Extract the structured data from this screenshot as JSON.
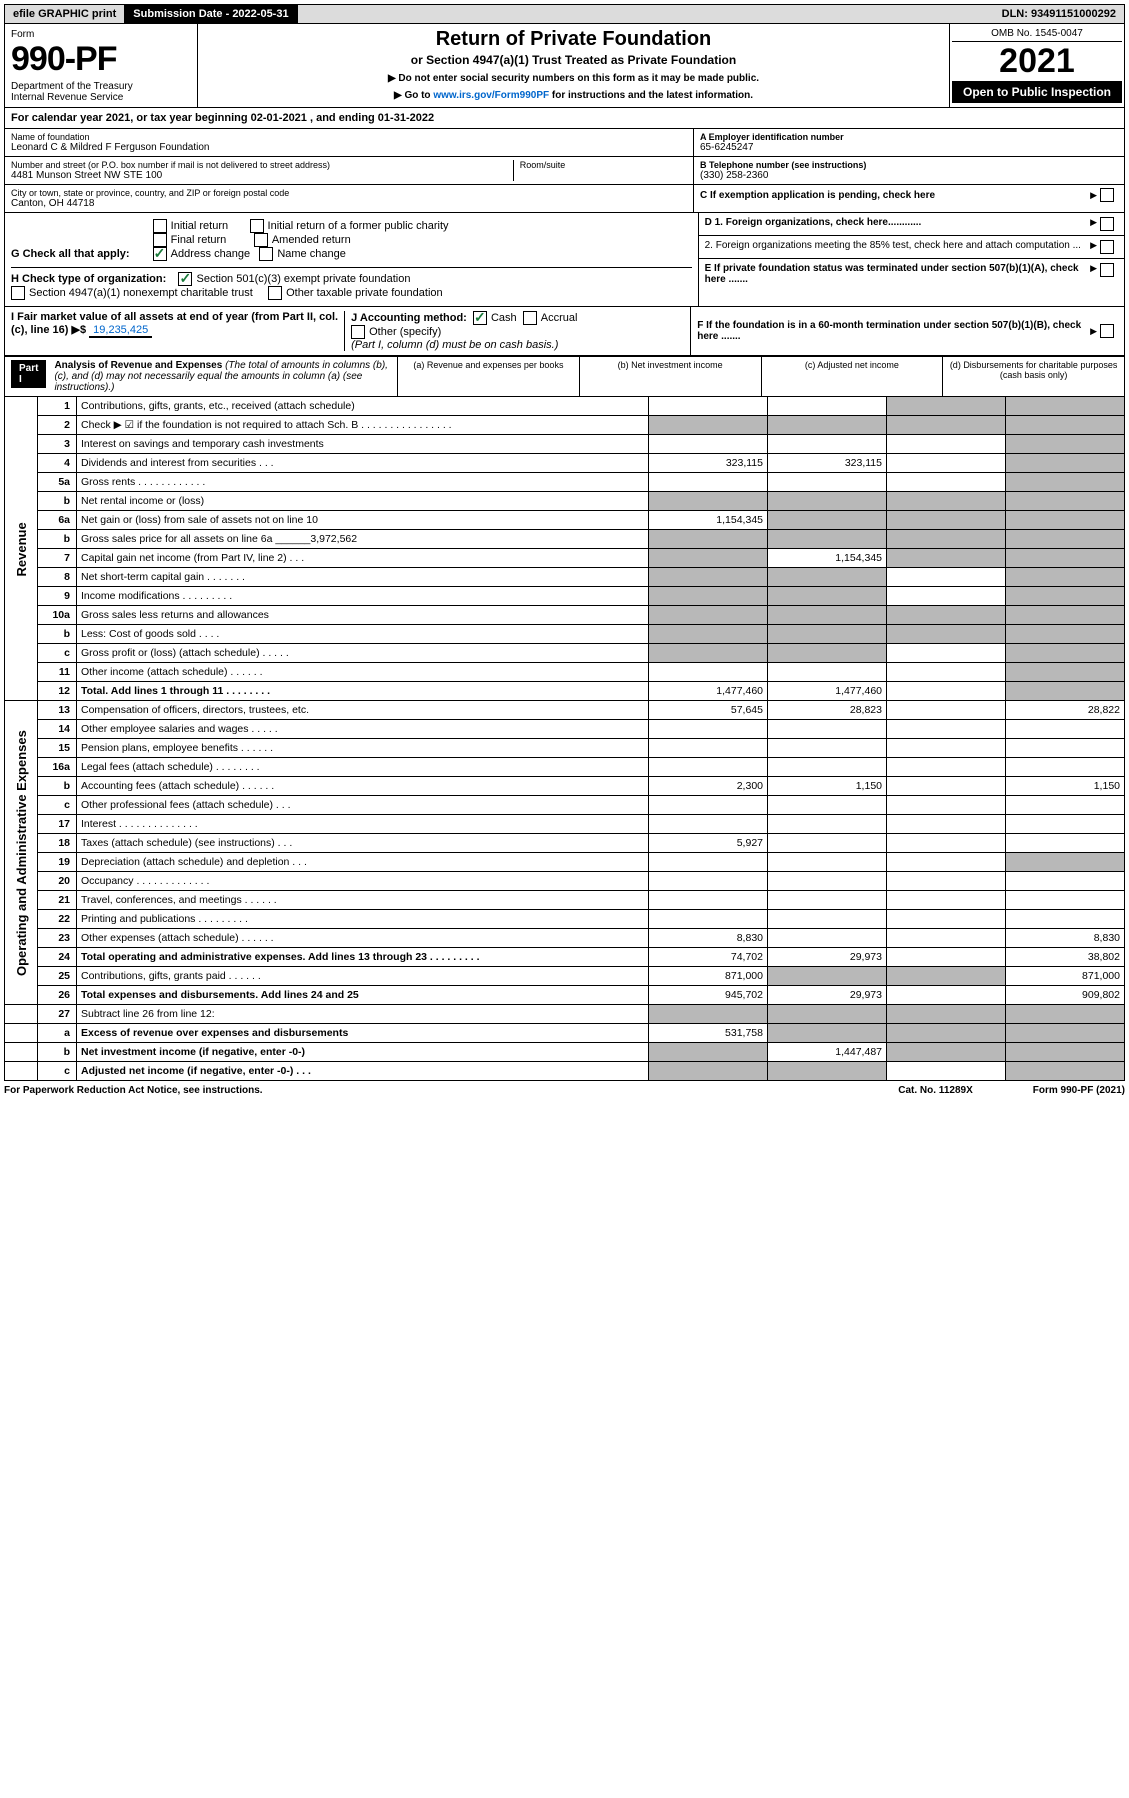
{
  "topbar": {
    "efile": "efile GRAPHIC print",
    "subdate_label": "Submission Date - 2022-05-31",
    "dln": "DLN: 93491151000292"
  },
  "header": {
    "form_label": "Form",
    "form_num": "990-PF",
    "dept": "Department of the Treasury\nInternal Revenue Service",
    "title": "Return of Private Foundation",
    "subtitle": "or Section 4947(a)(1) Trust Treated as Private Foundation",
    "instr1": "▶ Do not enter social security numbers on this form as it may be made public.",
    "instr2_pre": "▶ Go to ",
    "instr2_link": "www.irs.gov/Form990PF",
    "instr2_post": " for instructions and the latest information.",
    "omb": "OMB No. 1545-0047",
    "year": "2021",
    "open": "Open to Public Inspection"
  },
  "calendar": "For calendar year 2021, or tax year beginning 02-01-2021          , and ending 01-31-2022",
  "name": {
    "lbl": "Name of foundation",
    "val": "Leonard C & Mildred F Ferguson Foundation"
  },
  "addr1": {
    "lbl": "Number and street (or P.O. box number if mail is not delivered to street address)",
    "val": "4481 Munson Street NW STE 100",
    "room": "Room/suite"
  },
  "addr2": {
    "lbl": "City or town, state or province, country, and ZIP or foreign postal code",
    "val": "Canton, OH  44718"
  },
  "ein": {
    "lbl": "A Employer identification number",
    "val": "65-6245247"
  },
  "phone": {
    "lbl": "B Telephone number (see instructions)",
    "val": "(330) 258-2360"
  },
  "c_label": "C If exemption application is pending, check here",
  "g": {
    "label": "G Check all that apply:",
    "o1": "Initial return",
    "o2": "Final return",
    "o3": "Address change",
    "o4": "Initial return of a former public charity",
    "o5": "Amended return",
    "o6": "Name change"
  },
  "d": {
    "d1": "D 1. Foreign organizations, check here............",
    "d2": "2. Foreign organizations meeting the 85% test, check here and attach computation ..."
  },
  "e_label": "E If private foundation status was terminated under section 507(b)(1)(A), check here .......",
  "h": {
    "label": "H Check type of organization:",
    "o1": "Section 501(c)(3) exempt private foundation",
    "o2": "Section 4947(a)(1) nonexempt charitable trust",
    "o3": "Other taxable private foundation"
  },
  "i": {
    "label": "I Fair market value of all assets at end of year (from Part II, col. (c), line 16) ▶$",
    "val": "19,235,425"
  },
  "j": {
    "label": "J Accounting method:",
    "o1": "Cash",
    "o2": "Accrual",
    "o3": "Other (specify)",
    "note": "(Part I, column (d) must be on cash basis.)"
  },
  "f_label": "F If the foundation is in a 60-month termination under section 507(b)(1)(B), check here .......",
  "part1": {
    "label": "Part I",
    "title": "Analysis of Revenue and Expenses",
    "title_note": "(The total of amounts in columns (b), (c), and (d) may not necessarily equal the amounts in column (a) (see instructions).)",
    "col_a": "(a) Revenue and expenses per books",
    "col_b": "(b) Net investment income",
    "col_c": "(c) Adjusted net income",
    "col_d": "(d) Disbursements for charitable purposes (cash basis only)"
  },
  "rev_label": "Revenue",
  "exp_label": "Operating and Administrative Expenses",
  "rows": [
    {
      "n": "1",
      "t": "Contributions, gifts, grants, etc., received (attach schedule)",
      "a": "",
      "b": "",
      "c": "g",
      "d": "g"
    },
    {
      "n": "2",
      "t": "Check ▶ ☑ if the foundation is not required to attach Sch. B    .  .  .  .  .  .  .  .  .  .  .  .  .  .  .  .",
      "a": "g",
      "b": "g",
      "c": "g",
      "d": "g"
    },
    {
      "n": "3",
      "t": "Interest on savings and temporary cash investments",
      "a": "",
      "b": "",
      "c": "",
      "d": "g"
    },
    {
      "n": "4",
      "t": "Dividends and interest from securities    .   .   .",
      "a": "323,115",
      "b": "323,115",
      "c": "",
      "d": "g"
    },
    {
      "n": "5a",
      "t": "Gross rents    .   .   .   .   .   .   .   .   .   .   .   .",
      "a": "",
      "b": "",
      "c": "",
      "d": "g"
    },
    {
      "n": "b",
      "t": "Net rental income or (loss)",
      "a": "g",
      "b": "g",
      "c": "g",
      "d": "g"
    },
    {
      "n": "6a",
      "t": "Net gain or (loss) from sale of assets not on line 10",
      "a": "1,154,345",
      "b": "g",
      "c": "g",
      "d": "g"
    },
    {
      "n": "b",
      "t": "Gross sales price for all assets on line 6a ______3,972,562",
      "a": "g",
      "b": "g",
      "c": "g",
      "d": "g"
    },
    {
      "n": "7",
      "t": "Capital gain net income (from Part IV, line 2)    .   .   .",
      "a": "g",
      "b": "1,154,345",
      "c": "g",
      "d": "g"
    },
    {
      "n": "8",
      "t": "Net short-term capital gain    .   .   .   .   .   .   .",
      "a": "g",
      "b": "g",
      "c": "",
      "d": "g"
    },
    {
      "n": "9",
      "t": "Income modifications   .   .   .   .   .   .   .   .   .",
      "a": "g",
      "b": "g",
      "c": "",
      "d": "g"
    },
    {
      "n": "10a",
      "t": "Gross sales less returns and allowances",
      "a": "g",
      "b": "g",
      "c": "g",
      "d": "g"
    },
    {
      "n": "b",
      "t": "Less: Cost of goods sold    .   .   .   .",
      "a": "g",
      "b": "g",
      "c": "g",
      "d": "g"
    },
    {
      "n": "c",
      "t": "Gross profit or (loss) (attach schedule)    .   .   .   .   .",
      "a": "g",
      "b": "g",
      "c": "",
      "d": "g"
    },
    {
      "n": "11",
      "t": "Other income (attach schedule)    .   .   .   .   .   .",
      "a": "",
      "b": "",
      "c": "",
      "d": "g"
    },
    {
      "n": "12",
      "t": "Total. Add lines 1 through 11   .   .   .   .   .   .   .   .",
      "a": "1,477,460",
      "b": "1,477,460",
      "c": "",
      "d": "g",
      "bold": true
    }
  ],
  "exp_rows": [
    {
      "n": "13",
      "t": "Compensation of officers, directors, trustees, etc.",
      "a": "57,645",
      "b": "28,823",
      "c": "",
      "d": "28,822"
    },
    {
      "n": "14",
      "t": "Other employee salaries and wages    .   .   .   .   .",
      "a": "",
      "b": "",
      "c": "",
      "d": ""
    },
    {
      "n": "15",
      "t": "Pension plans, employee benefits   .   .   .   .   .   .",
      "a": "",
      "b": "",
      "c": "",
      "d": ""
    },
    {
      "n": "16a",
      "t": "Legal fees (attach schedule)  .   .   .   .   .   .   .   .",
      "a": "",
      "b": "",
      "c": "",
      "d": ""
    },
    {
      "n": "b",
      "t": "Accounting fees (attach schedule)  .   .   .   .   .   .",
      "a": "2,300",
      "b": "1,150",
      "c": "",
      "d": "1,150"
    },
    {
      "n": "c",
      "t": "Other professional fees (attach schedule)    .   .   .",
      "a": "",
      "b": "",
      "c": "",
      "d": ""
    },
    {
      "n": "17",
      "t": "Interest  .   .   .   .   .   .   .   .   .   .   .   .   .   .",
      "a": "",
      "b": "",
      "c": "",
      "d": ""
    },
    {
      "n": "18",
      "t": "Taxes (attach schedule) (see instructions)    .   .   .",
      "a": "5,927",
      "b": "",
      "c": "",
      "d": ""
    },
    {
      "n": "19",
      "t": "Depreciation (attach schedule) and depletion    .   .   .",
      "a": "",
      "b": "",
      "c": "",
      "d": "g"
    },
    {
      "n": "20",
      "t": "Occupancy  .   .   .   .   .   .   .   .   .   .   .   .   .",
      "a": "",
      "b": "",
      "c": "",
      "d": ""
    },
    {
      "n": "21",
      "t": "Travel, conferences, and meetings  .   .   .   .   .   .",
      "a": "",
      "b": "",
      "c": "",
      "d": ""
    },
    {
      "n": "22",
      "t": "Printing and publications  .   .   .   .   .   .   .   .   .",
      "a": "",
      "b": "",
      "c": "",
      "d": ""
    },
    {
      "n": "23",
      "t": "Other expenses (attach schedule)  .   .   .   .   .   .",
      "a": "8,830",
      "b": "",
      "c": "",
      "d": "8,830"
    },
    {
      "n": "24",
      "t": "Total operating and administrative expenses. Add lines 13 through 23   .   .   .   .   .   .   .   .   .",
      "a": "74,702",
      "b": "29,973",
      "c": "",
      "d": "38,802",
      "bold": true
    },
    {
      "n": "25",
      "t": "Contributions, gifts, grants paid    .   .   .   .   .   .",
      "a": "871,000",
      "b": "g",
      "c": "g",
      "d": "871,000"
    },
    {
      "n": "26",
      "t": "Total expenses and disbursements. Add lines 24 and 25",
      "a": "945,702",
      "b": "29,973",
      "c": "",
      "d": "909,802",
      "bold": true
    }
  ],
  "final_rows": [
    {
      "n": "27",
      "t": "Subtract line 26 from line 12:",
      "a": "g",
      "b": "g",
      "c": "g",
      "d": "g"
    },
    {
      "n": "a",
      "t": "Excess of revenue over expenses and disbursements",
      "a": "531,758",
      "b": "g",
      "c": "g",
      "d": "g",
      "bold": true
    },
    {
      "n": "b",
      "t": "Net investment income (if negative, enter -0-)",
      "a": "g",
      "b": "1,447,487",
      "c": "g",
      "d": "g",
      "bold": true
    },
    {
      "n": "c",
      "t": "Adjusted net income (if negative, enter -0-)   .   .   .",
      "a": "g",
      "b": "g",
      "c": "",
      "d": "g",
      "bold": true
    }
  ],
  "footer": {
    "left": "For Paperwork Reduction Act Notice, see instructions.",
    "mid": "Cat. No. 11289X",
    "right": "Form 990-PF (2021)"
  }
}
